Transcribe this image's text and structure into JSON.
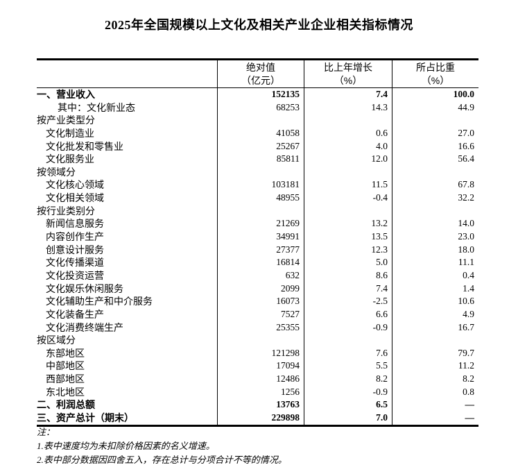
{
  "title": "2025年全国规模以上文化及相关产业企业相关指标情况",
  "table": {
    "header": {
      "stub": "",
      "cols": [
        {
          "line1": "绝对值",
          "line2": "（亿元）"
        },
        {
          "line1": "比上年增长",
          "line2": "（%）"
        },
        {
          "line1": "所占比重",
          "line2": "（%）"
        }
      ]
    },
    "rows": [
      {
        "label": "一、营业收入",
        "indent": 0,
        "bold": true,
        "values": [
          "152135",
          "7.4",
          "100.0"
        ]
      },
      {
        "label": "其中：文化新业态",
        "indent": 2,
        "bold": false,
        "values": [
          "68253",
          "14.3",
          "44.9"
        ]
      },
      {
        "label": "按产业类型分",
        "indent": 0,
        "bold": false,
        "values": [
          "",
          "",
          ""
        ]
      },
      {
        "label": "文化制造业",
        "indent": 1,
        "bold": false,
        "values": [
          "41058",
          "0.6",
          "27.0"
        ]
      },
      {
        "label": "文化批发和零售业",
        "indent": 1,
        "bold": false,
        "values": [
          "25267",
          "4.0",
          "16.6"
        ]
      },
      {
        "label": "文化服务业",
        "indent": 1,
        "bold": false,
        "values": [
          "85811",
          "12.0",
          "56.4"
        ]
      },
      {
        "label": "按领域分",
        "indent": 0,
        "bold": false,
        "values": [
          "",
          "",
          ""
        ]
      },
      {
        "label": "文化核心领域",
        "indent": 1,
        "bold": false,
        "values": [
          "103181",
          "11.5",
          "67.8"
        ]
      },
      {
        "label": "文化相关领域",
        "indent": 1,
        "bold": false,
        "values": [
          "48955",
          "-0.4",
          "32.2"
        ]
      },
      {
        "label": "按行业类别分",
        "indent": 0,
        "bold": false,
        "values": [
          "",
          "",
          ""
        ]
      },
      {
        "label": "新闻信息服务",
        "indent": 1,
        "bold": false,
        "values": [
          "21269",
          "13.2",
          "14.0"
        ]
      },
      {
        "label": "内容创作生产",
        "indent": 1,
        "bold": false,
        "values": [
          "34991",
          "13.5",
          "23.0"
        ]
      },
      {
        "label": "创意设计服务",
        "indent": 1,
        "bold": false,
        "values": [
          "27377",
          "12.3",
          "18.0"
        ]
      },
      {
        "label": "文化传播渠道",
        "indent": 1,
        "bold": false,
        "values": [
          "16814",
          "5.0",
          "11.1"
        ]
      },
      {
        "label": "文化投资运营",
        "indent": 1,
        "bold": false,
        "values": [
          "632",
          "8.6",
          "0.4"
        ]
      },
      {
        "label": "文化娱乐休闲服务",
        "indent": 1,
        "bold": false,
        "values": [
          "2099",
          "7.4",
          "1.4"
        ]
      },
      {
        "label": "文化辅助生产和中介服务",
        "indent": 1,
        "bold": false,
        "values": [
          "16073",
          "-2.5",
          "10.6"
        ]
      },
      {
        "label": "文化装备生产",
        "indent": 1,
        "bold": false,
        "values": [
          "7527",
          "6.6",
          "4.9"
        ]
      },
      {
        "label": "文化消费终端生产",
        "indent": 1,
        "bold": false,
        "values": [
          "25355",
          "-0.9",
          "16.7"
        ]
      },
      {
        "label": "按区域分",
        "indent": 0,
        "bold": false,
        "values": [
          "",
          "",
          ""
        ]
      },
      {
        "label": "东部地区",
        "indent": 1,
        "bold": false,
        "values": [
          "121298",
          "7.6",
          "79.7"
        ]
      },
      {
        "label": "中部地区",
        "indent": 1,
        "bold": false,
        "values": [
          "17094",
          "5.5",
          "11.2"
        ]
      },
      {
        "label": "西部地区",
        "indent": 1,
        "bold": false,
        "values": [
          "12486",
          "8.2",
          "8.2"
        ]
      },
      {
        "label": "东北地区",
        "indent": 1,
        "bold": false,
        "values": [
          "1256",
          "-0.9",
          "0.8"
        ]
      },
      {
        "label": "二、利润总额",
        "indent": 0,
        "bold": true,
        "values": [
          "13763",
          "6.5",
          "—"
        ]
      },
      {
        "label": "三、资产总计（期末）",
        "indent": 0,
        "bold": true,
        "values": [
          "229898",
          "7.0",
          "—"
        ]
      }
    ]
  },
  "notes": [
    "注：",
    "1.表中速度均为未扣除价格因素的名义增速。",
    "2.表中部分数据因四舍五入，存在总计与分项合计不等的情况。"
  ]
}
